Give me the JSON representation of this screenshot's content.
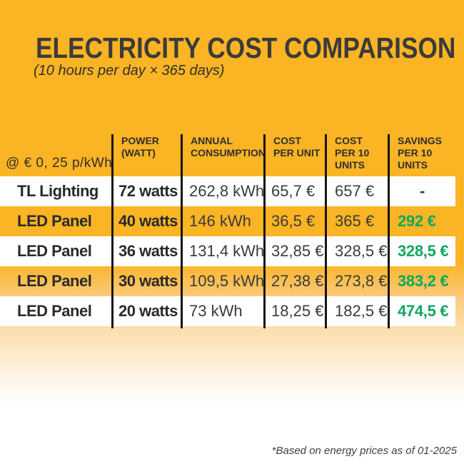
{
  "header": {
    "title": "ELECTRICITY COST COMPARISON",
    "subtitle": "(10 hours per day × 365 days)"
  },
  "rate_note": "@ € 0, 25 p/kWh",
  "chart_data": {
    "type": "table",
    "title": "ELECTRICITY COST COMPARISON",
    "subtitle": "(10 hours per day × 365 days)",
    "rate_assumption": "@ € 0, 25 p/kWh",
    "columns": {
      "power": "POWER\n(WATT)",
      "annual": "ANNUAL\nCONSUMPTION",
      "cost_unit": "COST\nPER UNIT",
      "cost_10": "COST\nPER 10\nUNITS",
      "savings": "SAVINGS\nPER 10\nUNITS"
    },
    "rows": [
      {
        "label": "TL Lighting",
        "power": "72 watts",
        "annual": "262,8 kWh",
        "cost_unit": "65,7 €",
        "cost_10": "657 €",
        "savings": "-"
      },
      {
        "label": "LED Panel",
        "power": "40 watts",
        "annual": "146 kWh",
        "cost_unit": "36,5 €",
        "cost_10": "365 €",
        "savings": "292 €"
      },
      {
        "label": "LED Panel",
        "power": "36 watts",
        "annual": "131,4 kWh",
        "cost_unit": "32,85 €",
        "cost_10": "328,5 €",
        "savings": "328,5 €"
      },
      {
        "label": "LED Panel",
        "power": "30 watts",
        "annual": "109,5 kWh",
        "cost_unit": "27,38 €",
        "cost_10": "273,8 €",
        "savings": "383,2 €"
      },
      {
        "label": "LED Panel",
        "power": "20 watts",
        "annual": "73 kWh",
        "cost_unit": "18,25 €",
        "cost_10": "182,5 €",
        "savings": "474,5 €"
      }
    ],
    "footnote": "*Based on energy prices as of 01-2025"
  },
  "colors": {
    "background_orange": "#FBB424",
    "row_white": "#FFFFFF",
    "savings_green": "#0FA85D",
    "line_black": "#151515",
    "text_dark": "#2E2E2E"
  }
}
